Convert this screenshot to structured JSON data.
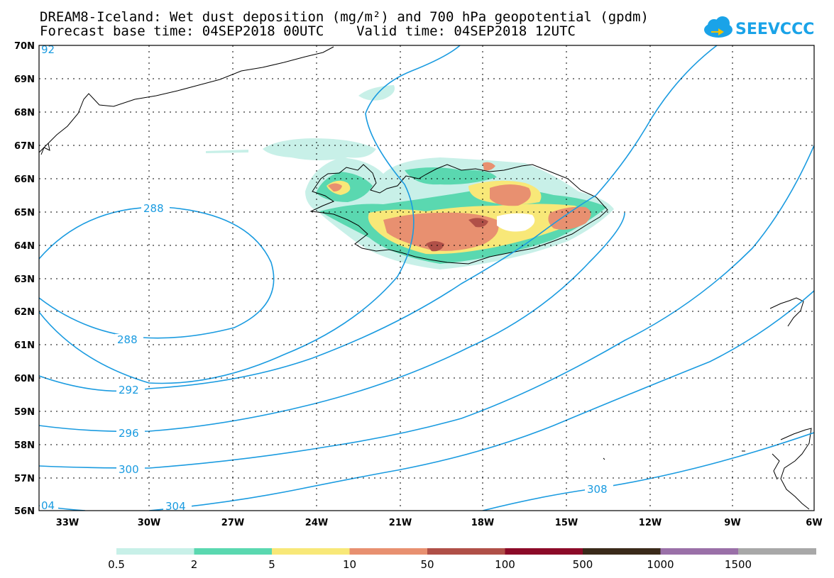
{
  "header": {
    "title_line1": "DREAM8-Iceland: Wet dust deposition (mg/m²) and 700 hPa geopotential (gpdm)",
    "title_line2": "Forecast base time: 04SEP2018 00UTC    Valid time: 04SEP2018 12UTC"
  },
  "logo": {
    "text": "SEEVCCC",
    "color": "#1aa3e8"
  },
  "map": {
    "lat_ticks": [
      "70N",
      "69N",
      "68N",
      "67N",
      "66N",
      "65N",
      "64N",
      "63N",
      "62N",
      "61N",
      "60N",
      "59N",
      "58N",
      "57N",
      "56N"
    ],
    "lon_ticks": [
      "33W",
      "30W",
      "27W",
      "24W",
      "21W",
      "18W",
      "15W",
      "12W",
      "9W",
      "6W"
    ],
    "contour_color": "#1a9be0",
    "contour_labels": [
      "92",
      "288",
      "288",
      "292",
      "296",
      "300",
      "04",
      "304",
      "308"
    ]
  },
  "colorbar": {
    "colors": [
      "#c8f0e8",
      "#5ad8b0",
      "#f8e878",
      "#e89070",
      "#b05048",
      "#8c0a28",
      "#3a2a1a",
      "#9a70a8",
      "#a8a8a8"
    ],
    "labels": [
      "0.5",
      "2",
      "5",
      "10",
      "50",
      "100",
      "500",
      "1000",
      "1500"
    ]
  }
}
